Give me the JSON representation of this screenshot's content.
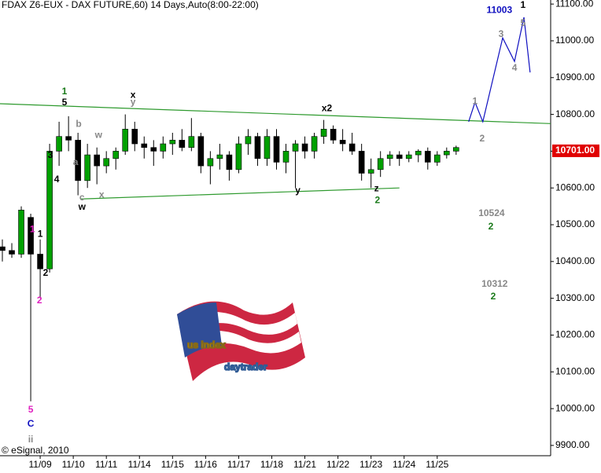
{
  "chart_data": {
    "type": "candlestick",
    "title": "FDAX Z6-EUX - DAX FUTURE,60) 14 Days,Auto(8:00-22:00)",
    "credit": "© eSignal, 2010",
    "watermark": [
      "us index",
      "daytrader"
    ],
    "xlim": [
      0,
      233
    ],
    "ylim": [
      9872,
      11111
    ],
    "xticks": [
      {
        "value": 17,
        "label": "11/09"
      },
      {
        "value": 31,
        "label": "11/10"
      },
      {
        "value": 45,
        "label": "11/11"
      },
      {
        "value": 59,
        "label": "11/14"
      },
      {
        "value": 73,
        "label": "11/15"
      },
      {
        "value": 87,
        "label": "11/16"
      },
      {
        "value": 101,
        "label": "11/17"
      },
      {
        "value": 115,
        "label": "11/18"
      },
      {
        "value": 129,
        "label": "11/21"
      },
      {
        "value": 143,
        "label": "11/22"
      },
      {
        "value": 157,
        "label": "11/23"
      },
      {
        "value": 171,
        "label": "11/24"
      },
      {
        "value": 185,
        "label": "11/25"
      }
    ],
    "yticks": [
      {
        "value": 9900,
        "label": "9900.00"
      },
      {
        "value": 10000,
        "label": "10000.00"
      },
      {
        "value": 10100,
        "label": "10100.00"
      },
      {
        "value": 10200,
        "label": "10200.00"
      },
      {
        "value": 10300,
        "label": "10300.00"
      },
      {
        "value": 10400,
        "label": "10400.00"
      },
      {
        "value": 10500,
        "label": "10500.00"
      },
      {
        "value": 10600,
        "label": "10600.00"
      },
      {
        "value": 10700,
        "label": "10700.00"
      },
      {
        "value": 10800,
        "label": "10800.00"
      },
      {
        "value": 10900,
        "label": "10900.00"
      },
      {
        "value": 11000,
        "label": "11000.00"
      },
      {
        "value": 11100,
        "label": "11100.00"
      }
    ],
    "last_price": {
      "value": 10701,
      "label": "10701.00"
    },
    "up_color": "#00a000",
    "down_color": "#000000",
    "x": [
      1,
      5,
      9,
      13,
      17,
      21,
      25,
      29,
      33,
      37,
      41,
      45,
      49,
      53,
      57,
      61,
      65,
      69,
      73,
      77,
      81,
      85,
      89,
      93,
      97,
      101,
      105,
      109,
      113,
      117,
      121,
      125,
      129,
      133,
      137,
      141,
      145,
      149,
      153,
      157,
      161,
      165,
      169,
      173,
      177,
      181,
      185,
      189,
      193
    ],
    "open": [
      10440,
      10430,
      10420,
      10520,
      10420,
      10380,
      10700,
      10740,
      10730,
      10620,
      10690,
      10660,
      10680,
      10700,
      10760,
      10720,
      10710,
      10700,
      10720,
      10730,
      10710,
      10740,
      10660,
      10680,
      10690,
      10650,
      10720,
      10740,
      10680,
      10740,
      10670,
      10700,
      10720,
      10700,
      10740,
      10760,
      10730,
      10720,
      10700,
      10640,
      10650,
      10680,
      10690,
      10680,
      10690,
      10700,
      10670,
      10690,
      10700
    ],
    "high": [
      10460,
      10450,
      10550,
      10530,
      10460,
      10720,
      10780,
      10795,
      10750,
      10720,
      10710,
      10700,
      10710,
      10800,
      10780,
      10740,
      10730,
      10740,
      10750,
      10760,
      10790,
      10750,
      10700,
      10720,
      10700,
      10740,
      10760,
      10750,
      10760,
      10760,
      10720,
      10730,
      10740,
      10750,
      10785,
      10770,
      10760,
      10750,
      10720,
      10680,
      10700,
      10700,
      10700,
      10700,
      10705,
      10710,
      10700,
      10710,
      10715
    ],
    "low": [
      10400,
      10410,
      10410,
      10020,
      10300,
      10370,
      10660,
      10700,
      10580,
      10600,
      10610,
      10640,
      10650,
      10690,
      10700,
      10680,
      10660,
      10680,
      10690,
      10700,
      10700,
      10640,
      10610,
      10650,
      10620,
      10640,
      10690,
      10660,
      10660,
      10650,
      10640,
      10600,
      10680,
      10680,
      10720,
      10720,
      10700,
      10690,
      10620,
      10600,
      10630,
      10660,
      10660,
      10670,
      10670,
      10650,
      10660,
      10680,
      10690
    ],
    "close": [
      10430,
      10420,
      10540,
      10420,
      10380,
      10700,
      10740,
      10730,
      10620,
      10690,
      10660,
      10680,
      10700,
      10760,
      10720,
      10710,
      10700,
      10720,
      10730,
      10710,
      10740,
      10660,
      10680,
      10690,
      10650,
      10720,
      10740,
      10680,
      10740,
      10670,
      10700,
      10720,
      10700,
      10740,
      10760,
      10730,
      10720,
      10700,
      10640,
      10650,
      10680,
      10690,
      10680,
      10690,
      10700,
      10670,
      10690,
      10700,
      10710
    ],
    "lines": [
      {
        "color": "#2e9a2e",
        "x": [
          0,
          233
        ],
        "y": [
          10829,
          10775
        ]
      },
      {
        "color": "#2e9a2e",
        "x": [
          34,
          169
        ],
        "y": [
          10570,
          10600
        ]
      },
      {
        "color": "#1010c0",
        "x": [
          198.3,
          201,
          204.3,
          212.7,
          217.7,
          221.7,
          224.3
        ],
        "y": [
          10780,
          10833,
          10780,
          11008,
          10944,
          11064,
          10914
        ]
      }
    ],
    "annotations": [
      {
        "text": "1",
        "x": 27.3,
        "y": 10861,
        "color": "#1a7a1a"
      },
      {
        "text": "5",
        "x": 27.3,
        "y": 10831,
        "color": "#000000"
      },
      {
        "text": "x",
        "x": 56.3,
        "y": 10852,
        "color": "#000000"
      },
      {
        "text": "y",
        "x": 56.3,
        "y": 10833,
        "color": "#888888"
      },
      {
        "text": "b",
        "x": 33.3,
        "y": 10773,
        "color": "#888888"
      },
      {
        "text": "w",
        "x": 41.7,
        "y": 10743,
        "color": "#888888"
      },
      {
        "text": "3",
        "x": 21.3,
        "y": 10688,
        "color": "#000000"
      },
      {
        "text": "a",
        "x": 32,
        "y": 10669,
        "color": "#888888"
      },
      {
        "text": "4",
        "x": 24,
        "y": 10622,
        "color": "#000000"
      },
      {
        "text": "c",
        "x": 34.7,
        "y": 10573,
        "color": "#888888"
      },
      {
        "text": "w",
        "x": 34.7,
        "y": 10547,
        "color": "#000000"
      },
      {
        "text": "x",
        "x": 43,
        "y": 10581,
        "color": "#888888"
      },
      {
        "text": "x2",
        "x": 138.3,
        "y": 10816,
        "color": "#000000"
      },
      {
        "text": "y",
        "x": 126,
        "y": 10592,
        "color": "#000000"
      },
      {
        "text": "z",
        "x": 159.3,
        "y": 10598,
        "color": "#000000"
      },
      {
        "text": "2",
        "x": 159.7,
        "y": 10566,
        "color": "#1a7a1a"
      },
      {
        "text": "1",
        "x": 201,
        "y": 10835,
        "color": "#888888"
      },
      {
        "text": "2",
        "x": 204,
        "y": 10733,
        "color": "#888888"
      },
      {
        "text": "3",
        "x": 212,
        "y": 11017,
        "color": "#888888"
      },
      {
        "text": "4",
        "x": 217.7,
        "y": 10925,
        "color": "#888888"
      },
      {
        "text": "5",
        "x": 221.3,
        "y": 11047,
        "color": "#888888"
      },
      {
        "text": "1",
        "x": 221.3,
        "y": 11096,
        "color": "#000000"
      },
      {
        "text": "11003",
        "x": 211.3,
        "y": 11083,
        "color": "#1010c0"
      },
      {
        "text": "10524",
        "x": 208,
        "y": 10530,
        "color": "#888888"
      },
      {
        "text": "2",
        "x": 207.7,
        "y": 10494,
        "color": "#1a7a1a"
      },
      {
        "text": "10312",
        "x": 209.3,
        "y": 10338,
        "color": "#888888"
      },
      {
        "text": "2",
        "x": 208.7,
        "y": 10304,
        "color": "#1a7a1a"
      },
      {
        "text": "1",
        "x": 13.7,
        "y": 10487,
        "color": "#e020c0"
      },
      {
        "text": "1",
        "x": 17,
        "y": 10474,
        "color": "#000000"
      },
      {
        "text": "2",
        "x": 19.3,
        "y": 10368,
        "color": "#000000"
      },
      {
        "text": "2",
        "x": 16.7,
        "y": 10293,
        "color": "#e020c0"
      },
      {
        "text": "5",
        "x": 13,
        "y": 9996,
        "color": "#e020c0"
      },
      {
        "text": "C",
        "x": 13,
        "y": 9958,
        "color": "#1010c0"
      },
      {
        "text": "ii",
        "x": 13,
        "y": 9915,
        "color": "#888888"
      }
    ]
  }
}
